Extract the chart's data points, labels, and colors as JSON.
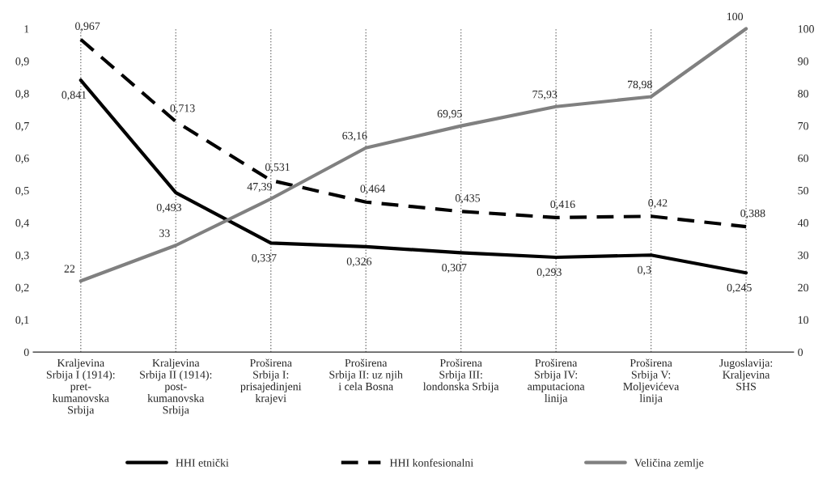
{
  "chart_data": {
    "type": "line",
    "categories": [
      "Kraljevina\nSrbija I (1914):\npret-\nkumanovska\nSrbija",
      "Kraljevina\nSrbija II (1914):\npost-\nkumanovska\nSrbija",
      "Proširena\nSrbija I:\nprisajedinjeni\nkrajevi",
      "Proširena\nSrbija II: uz njih\ni cela Bosna",
      "Proširena\nSrbija III:\nlondonska Srbija",
      "Proširena\nSrbija IV:\namputaciona\nlinija",
      "Proširena\nSrbija V:\nMoljevićeva\nlinija",
      "Jugoslavija:\nKraljevina\nSHS"
    ],
    "series": [
      {
        "name": "HHI etnički",
        "color": "#000000",
        "line_style": "solid",
        "values": [
          0.841,
          0.493,
          0.337,
          0.326,
          0.307,
          0.293,
          0.3,
          0.245
        ],
        "value_labels": [
          "0,841",
          "0,493",
          "0,337",
          "0,326",
          "0,307",
          "0,293",
          "0,3",
          "0,245"
        ]
      },
      {
        "name": "HHI konfesionalni",
        "color": "#000000",
        "line_style": "dashed",
        "values": [
          0.967,
          0.713,
          0.531,
          0.464,
          0.435,
          0.416,
          0.42,
          0.388
        ],
        "value_labels": [
          "0,967",
          "0,713",
          "0,531",
          "0,464",
          "0,435",
          "0,416",
          "0,42",
          "0,388"
        ]
      },
      {
        "name": "Veličina zemlje",
        "color": "#808080",
        "line_style": "solid",
        "axis": "y2",
        "values": [
          22,
          33,
          47.39,
          63.16,
          69.95,
          75.93,
          78.98,
          100
        ],
        "value_labels": [
          "22",
          "33",
          "47,39",
          "63,16",
          "69,95",
          "75,93",
          "78,98",
          "100"
        ]
      }
    ],
    "ylim": [
      0,
      1
    ],
    "yticks": [
      0,
      {
        "value": 0.1,
        "label": "0,1"
      },
      {
        "value": 0.2,
        "label": "0,2"
      },
      {
        "value": 0.3,
        "label": "0,3"
      },
      {
        "value": 0.4,
        "label": "0,4"
      },
      {
        "value": 0.5,
        "label": "0,5"
      },
      {
        "value": 0.6,
        "label": "0,6"
      },
      {
        "value": 0.7,
        "label": "0,7"
      },
      {
        "value": 0.8,
        "label": "0,8"
      },
      {
        "value": 0.9,
        "label": "0,9"
      },
      1
    ],
    "y2lim": [
      0,
      100
    ],
    "y2ticks": [
      0,
      10,
      20,
      30,
      40,
      50,
      60,
      70,
      80,
      90,
      100
    ],
    "grid": "x",
    "legend": "bottom"
  }
}
